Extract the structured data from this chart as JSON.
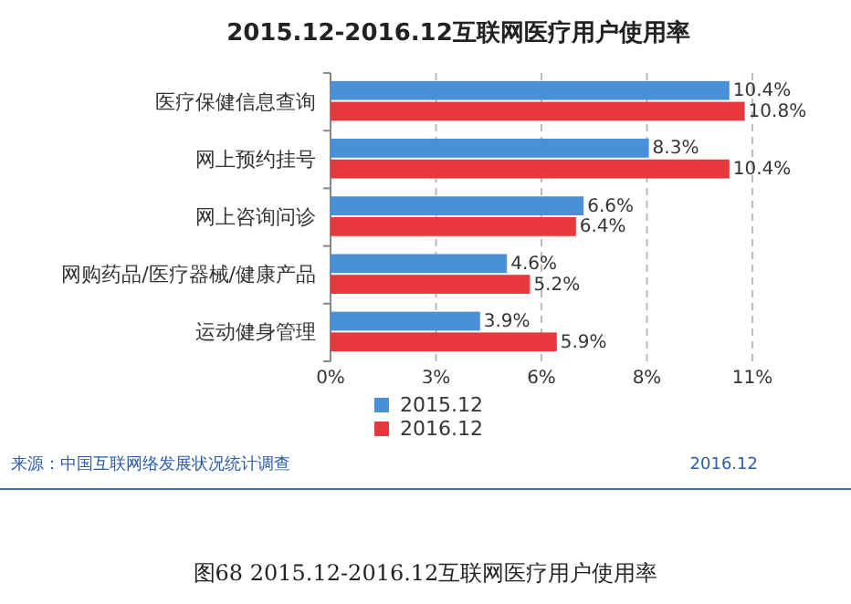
{
  "chart_data": {
    "type": "bar",
    "orientation": "horizontal",
    "title": "2015.12-2016.12互联网医疗用户使用率",
    "categories": [
      "医疗保健信息查询",
      "网上预约挂号",
      "网上咨询问诊",
      "网购药品/医疗器械/健康产品",
      "运动健身管理"
    ],
    "series": [
      {
        "name": "2015.12",
        "color": "#4a90d9",
        "values": [
          10.4,
          8.3,
          6.6,
          4.6,
          3.9
        ],
        "value_labels": [
          "10.4%",
          "8.3%",
          "6.6%",
          "4.6%",
          "3.9%"
        ]
      },
      {
        "name": "2016.12",
        "color": "#e8383d",
        "values": [
          10.8,
          10.4,
          6.4,
          5.2,
          5.9
        ],
        "value_labels": [
          "10.8%",
          "10.4%",
          "6.4%",
          "5.2%",
          "5.9%"
        ]
      }
    ],
    "xlim": [
      0,
      11
    ],
    "xticks": [
      {
        "value": 0,
        "label": "0%"
      },
      {
        "value": 2.75,
        "label": "3%"
      },
      {
        "value": 5.5,
        "label": "6%"
      },
      {
        "value": 8.25,
        "label": "8%"
      },
      {
        "value": 11,
        "label": "11%"
      }
    ],
    "grid": "x",
    "legend": "bottom",
    "annotations": [
      "来源：中国互联网络发展状况统计调查",
      "2016.12",
      "图68  2015.12-2016.12互联网医疗用户使用率"
    ]
  }
}
